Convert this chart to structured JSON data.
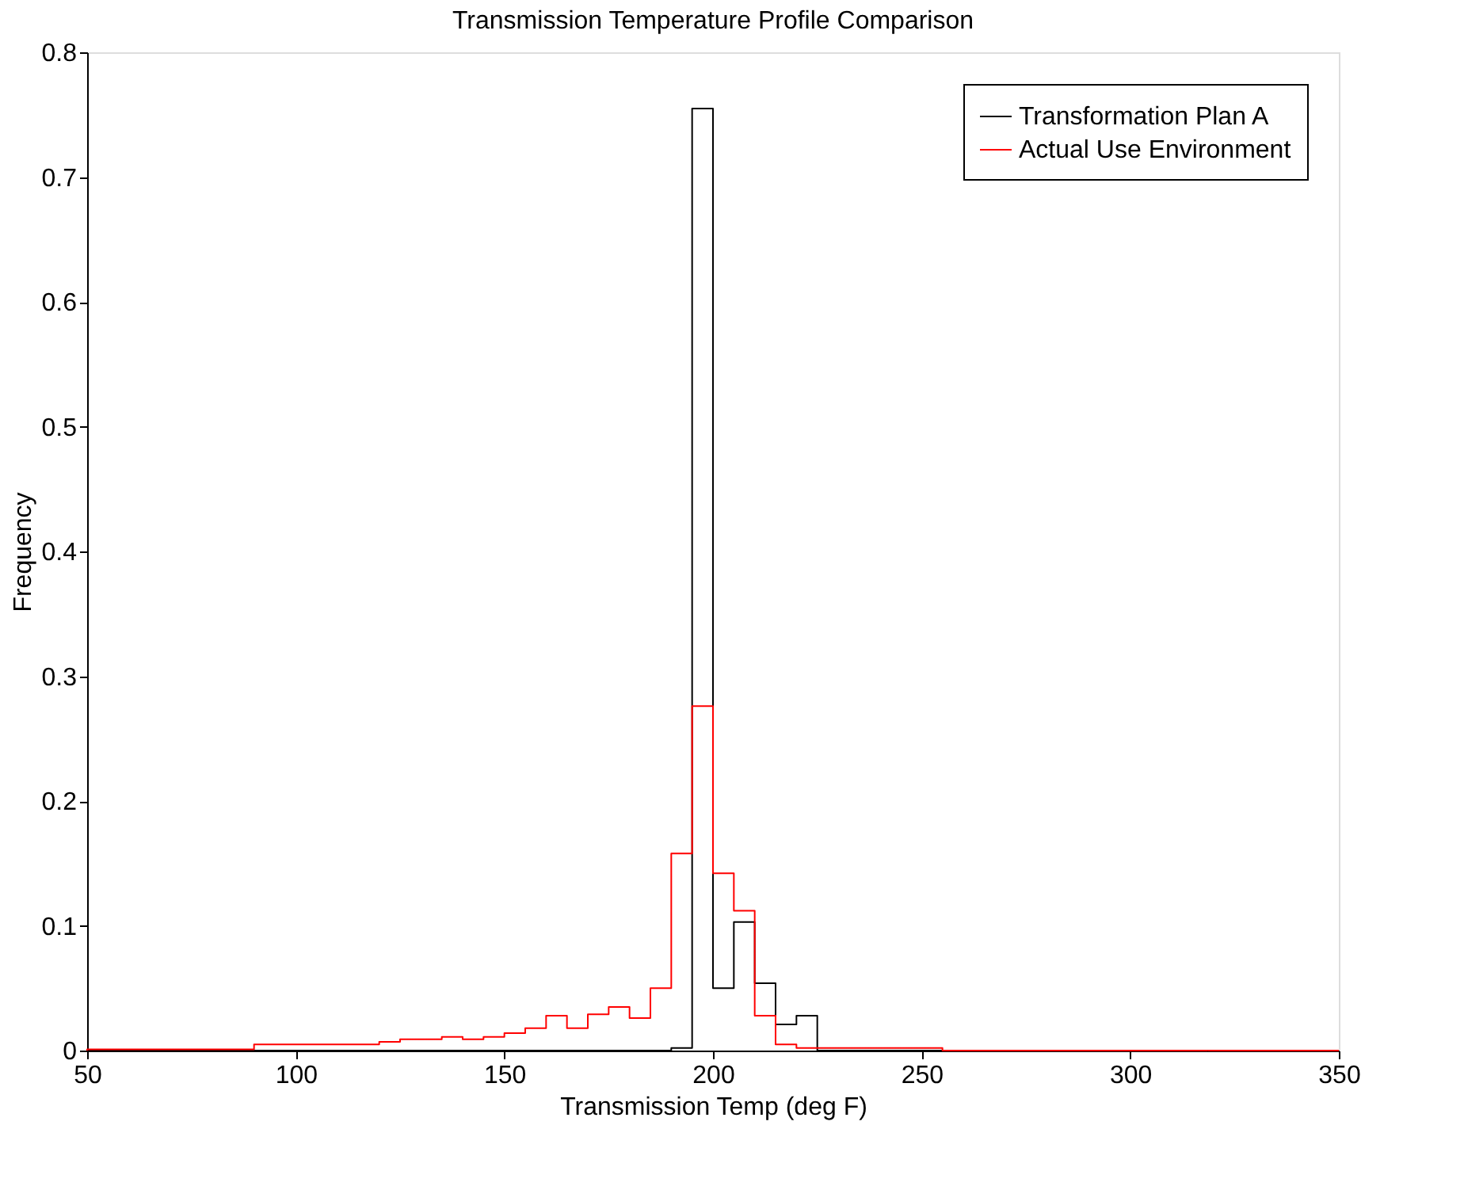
{
  "chart_data": {
    "type": "histogram",
    "title": "Transmission Temperature Profile Comparison",
    "xlabel": "Transmission Temp (deg F)",
    "ylabel": "Frequency",
    "bins": [
      50,
      55,
      60,
      65,
      70,
      75,
      80,
      85,
      90,
      95,
      100,
      105,
      110,
      115,
      120,
      125,
      130,
      135,
      140,
      145,
      150,
      155,
      160,
      165,
      170,
      175,
      180,
      185,
      190,
      195,
      200,
      205,
      210,
      215,
      220,
      225,
      230,
      235,
      240,
      245,
      250,
      255,
      260,
      265,
      270,
      275,
      280,
      285,
      290,
      295,
      300,
      305,
      310,
      315,
      320,
      325,
      330,
      335,
      340,
      345,
      350
    ],
    "series": [
      {
        "name": "Transformation Plan A",
        "color": "#000000",
        "values": [
          0,
          0,
          0,
          0,
          0,
          0,
          0,
          0,
          0,
          0,
          0,
          0,
          0,
          0,
          0,
          0,
          0,
          0,
          0,
          0,
          0,
          0,
          0,
          0,
          0,
          0,
          0,
          0,
          0.002,
          0.755,
          0.05,
          0.103,
          0.054,
          0.021,
          0.028,
          0,
          0,
          0,
          0,
          0,
          0,
          0,
          0,
          0,
          0,
          0,
          0,
          0,
          0,
          0,
          0,
          0,
          0,
          0,
          0,
          0,
          0,
          0,
          0,
          0
        ]
      },
      {
        "name": "Actual Use Environment",
        "color": "#ff0000",
        "values": [
          0.001,
          0.001,
          0.001,
          0.001,
          0.001,
          0.001,
          0.001,
          0.001,
          0.005,
          0.005,
          0.005,
          0.005,
          0.005,
          0.005,
          0.007,
          0.009,
          0.009,
          0.011,
          0.009,
          0.011,
          0.014,
          0.018,
          0.028,
          0.018,
          0.029,
          0.035,
          0.026,
          0.05,
          0.158,
          0.276,
          0.142,
          0.112,
          0.028,
          0.005,
          0.002,
          0.002,
          0.002,
          0.002,
          0.002,
          0.002,
          0.002,
          0,
          0,
          0,
          0,
          0,
          0,
          0,
          0,
          0,
          0,
          0,
          0,
          0,
          0,
          0,
          0,
          0,
          0,
          0
        ]
      }
    ],
    "xlim": [
      50,
      350
    ],
    "xticks": [
      50,
      100,
      150,
      200,
      250,
      300,
      350
    ],
    "ylim": [
      0,
      0.8
    ],
    "yticks": [
      0,
      0.1,
      0.2,
      0.3,
      0.4,
      0.5,
      0.6,
      0.7,
      0.8
    ],
    "grid": false,
    "legend": "top right",
    "line_style": "solid"
  }
}
